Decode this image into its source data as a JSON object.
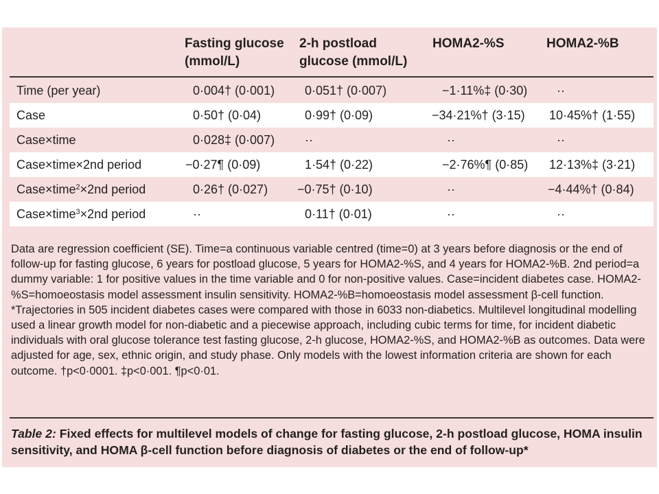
{
  "table": {
    "headers": [
      {
        "line1": "Fasting glucose",
        "line2": "(mmol/L)"
      },
      {
        "line1": "2-h postload",
        "line2": "glucose (mmol/L)"
      },
      {
        "line1": "HOMA2-%S",
        "line2": ""
      },
      {
        "line1": "HOMA2-%B",
        "line2": ""
      }
    ],
    "rows": [
      {
        "label": "Time (per year)",
        "label_sup": "",
        "label_suffix": "",
        "cells": [
          "0·004† (0·001)",
          "0·051† (0·007)",
          "−1·11%‡ (0·30)",
          "··"
        ]
      },
      {
        "label": "Case",
        "label_sup": "",
        "label_suffix": "",
        "cells": [
          "0·50† (0·04)",
          "0·99† (0·09)",
          "−34·21%† (3·15)",
          "10·45%† (1·55)"
        ]
      },
      {
        "label": "Case×time",
        "label_sup": "",
        "label_suffix": "",
        "cells": [
          "0·028‡ (0·007)",
          "··",
          "··",
          "··"
        ]
      },
      {
        "label": "Case×time×2nd period",
        "label_sup": "",
        "label_suffix": "",
        "cells": [
          "−0·27¶ (0·09)",
          "1·54† (0·22)",
          "−2·76%¶ (0·85)",
          "12·13%‡ (3·21)"
        ]
      },
      {
        "label": "Case×time",
        "label_sup": "2",
        "label_suffix": "×2nd period",
        "cells": [
          "0·26† (0·027)",
          "−0·75† (0·10)",
          "··",
          "−4·44%† (0·84)"
        ]
      },
      {
        "label": "Case×time",
        "label_sup": "3",
        "label_suffix": "×2nd period",
        "cells": [
          "··",
          "0·11† (0·01)",
          "··",
          "··"
        ]
      }
    ]
  },
  "footnote": "Data are regression coefficient (SE). Time=a continuous variable centred (time=0) at 3 years before diagnosis or the end of follow-up for fasting glucose, 6 years for postload glucose, 5 years for HOMA2-%S, and 4 years for HOMA2-%B. 2nd period=a dummy variable: 1 for positive values in the time variable and 0 for non-positive values. Case=incident diabetes case. HOMA2-%S=homoeostasis model assessment insulin sensitivity. HOMA2-%B=homoeostasis model assessment β-cell function. *Trajectories in 505 incident diabetes cases were compared with those in 6033 non-diabetics. Multilevel longitudinal modelling used a linear growth model for non-diabetic and a piecewise approach, including cubic terms for time, for incident diabetic individuals with oral glucose tolerance test fasting glucose, 2-h glucose, HOMA2-%S, and HOMA2-%B as outcomes. Data were adjusted for age, sex, ethnic origin, and study phase. Only models with the lowest information criteria are shown for each outcome. †p<0·0001. ‡p<0·001. ¶p<0·01.",
  "caption": {
    "label": "Table 2:",
    "text": " Fixed effects for multilevel models of change for fasting glucose, 2-h postload glucose, HOMA insulin sensitivity, and HOMA β-cell function before diagnosis of diabetes or the end of follow-up*"
  },
  "colors": {
    "panel_background": "#f6dede",
    "alt_row_background": "#ffffff",
    "text": "#231f20",
    "rule": "#3a3536"
  }
}
